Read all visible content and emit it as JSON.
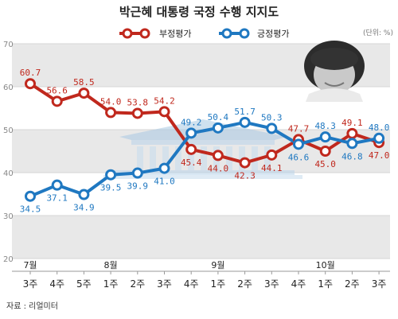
{
  "title": "박근혜 대통령 국정 수행 지지도",
  "unit": "(단위: %)",
  "source": "자료 : 리얼미터",
  "colors": {
    "disapprove": "#c0281d",
    "approve": "#1f78c1",
    "band": "#e8e8e8"
  },
  "chart_data": {
    "type": "line",
    "categories": [
      "3주",
      "4주",
      "5주",
      "1주",
      "2주",
      "3주",
      "4주",
      "1주",
      "2주",
      "3주",
      "4주",
      "1주",
      "2주",
      "3주"
    ],
    "months": [
      {
        "label": "7월",
        "index": 0
      },
      {
        "label": "8월",
        "index": 3
      },
      {
        "label": "9월",
        "index": 7
      },
      {
        "label": "10월",
        "index": 11
      }
    ],
    "ylim": [
      20,
      70
    ],
    "yticks": [
      20,
      30,
      40,
      50,
      60,
      70
    ],
    "legend_placement": "top",
    "series": [
      {
        "name": "부정평가",
        "color": "#c0281d",
        "values": [
          60.7,
          56.6,
          58.5,
          54.0,
          53.8,
          54.2,
          45.4,
          44.0,
          42.3,
          44.1,
          47.7,
          45.0,
          49.1,
          47.0
        ]
      },
      {
        "name": "긍정평가",
        "color": "#1f78c1",
        "values": [
          34.5,
          37.1,
          34.9,
          39.5,
          39.9,
          41.0,
          49.2,
          50.4,
          51.7,
          50.3,
          46.6,
          48.3,
          46.8,
          48.0
        ]
      }
    ]
  }
}
